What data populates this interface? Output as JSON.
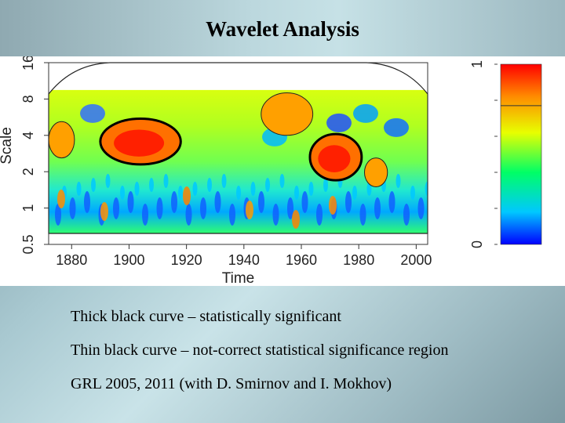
{
  "slide": {
    "title": "Wavelet Analysis",
    "notes": [
      "Thick black curve – statistically significant",
      "Thin black curve – not-correct statistical significance region",
      "GRL 2005, 2011 (with D. Smirnov and I. Mokhov)"
    ]
  },
  "chart_data": {
    "type": "heatmap",
    "title": "",
    "xlabel": "Time",
    "ylabel": "Scale",
    "x_ticks": [
      "1880",
      "1900",
      "1920",
      "1940",
      "1960",
      "1980",
      "2000"
    ],
    "y_ticks": [
      "0.5",
      "1",
      "2",
      "4",
      "8",
      "16"
    ],
    "y_scale": "log2",
    "xlim": [
      1872,
      2004
    ],
    "ylim": [
      0.5,
      16
    ],
    "colorbar": {
      "ticks": [
        "0",
        "1"
      ],
      "range": [
        0,
        1
      ],
      "colors": [
        "#0000ff",
        "#00c8ff",
        "#00ff66",
        "#e8ff00",
        "#ff8c00",
        "#ff0000"
      ]
    },
    "significant_regions": [
      {
        "x": [
          1890,
          1918
        ],
        "scale": [
          2.3,
          5.5
        ]
      },
      {
        "x": [
          1963,
          1981
        ],
        "scale": [
          1.7,
          4.1
        ]
      }
    ],
    "data_max_scale": 9.5
  }
}
